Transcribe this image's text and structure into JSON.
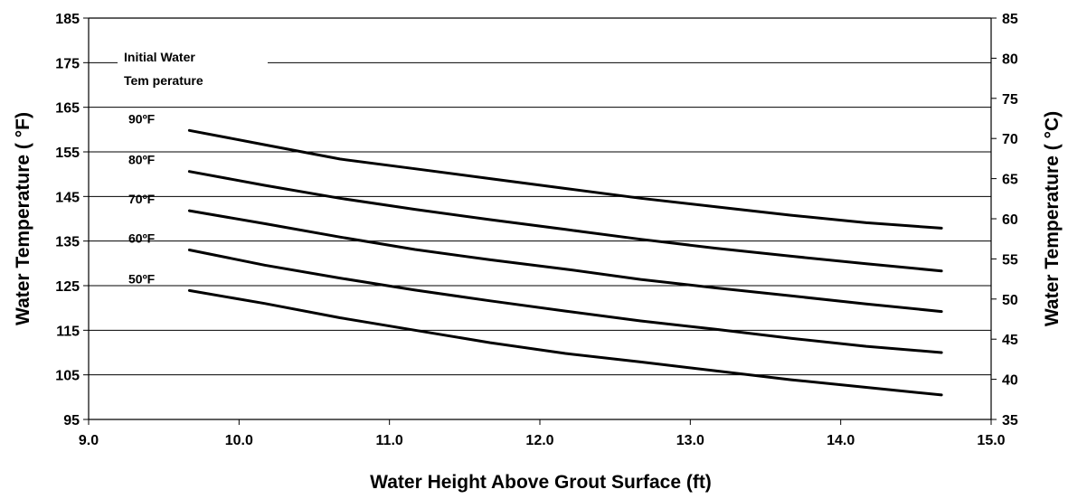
{
  "chart_data": {
    "type": "line",
    "xlabel": "Water Height Above Grout Surface (ft)",
    "ylabel": "Water Temperature ( °F)",
    "ylabel_right": "Water Temperature ( °C)",
    "xlim": [
      9.0,
      15.0
    ],
    "ylim": [
      95,
      185
    ],
    "ylim_right": [
      35,
      85
    ],
    "x_ticks": [
      "9.0",
      "10.0",
      "11.0",
      "12.0",
      "13.0",
      "14.0",
      "15.0"
    ],
    "y_ticks": [
      "95",
      "105",
      "115",
      "125",
      "135",
      "145",
      "155",
      "165",
      "175",
      "185"
    ],
    "y_ticks_right": [
      "35",
      "40",
      "45",
      "50",
      "55",
      "60",
      "65",
      "70",
      "75",
      "80",
      "85"
    ],
    "grid": "horizontal",
    "legend_title_lines": [
      "Initial Water",
      "Tem perature"
    ],
    "x": [
      9.67,
      10.17,
      10.67,
      11.17,
      11.67,
      12.17,
      12.67,
      13.17,
      13.67,
      14.17,
      14.67
    ],
    "series": [
      {
        "name": "90ºF",
        "values": [
          159.8,
          156.6,
          153.4,
          151.2,
          149.0,
          146.8,
          144.6,
          142.7,
          140.8,
          139.1,
          137.9
        ]
      },
      {
        "name": "80ºF",
        "values": [
          150.6,
          147.5,
          144.6,
          142.1,
          139.8,
          137.6,
          135.4,
          133.4,
          131.6,
          129.9,
          128.3
        ]
      },
      {
        "name": "70ºF",
        "values": [
          141.8,
          138.9,
          135.9,
          133.1,
          130.8,
          128.7,
          126.4,
          124.5,
          122.7,
          120.9,
          119.2
        ]
      },
      {
        "name": "60ºF",
        "values": [
          133.0,
          129.6,
          126.7,
          124.0,
          121.6,
          119.3,
          117.1,
          115.2,
          113.2,
          111.4,
          110.0
        ]
      },
      {
        "name": "50ºF",
        "values": [
          123.9,
          121.0,
          117.8,
          115.0,
          112.2,
          109.8,
          107.9,
          105.9,
          103.9,
          102.2,
          100.5
        ]
      }
    ]
  }
}
